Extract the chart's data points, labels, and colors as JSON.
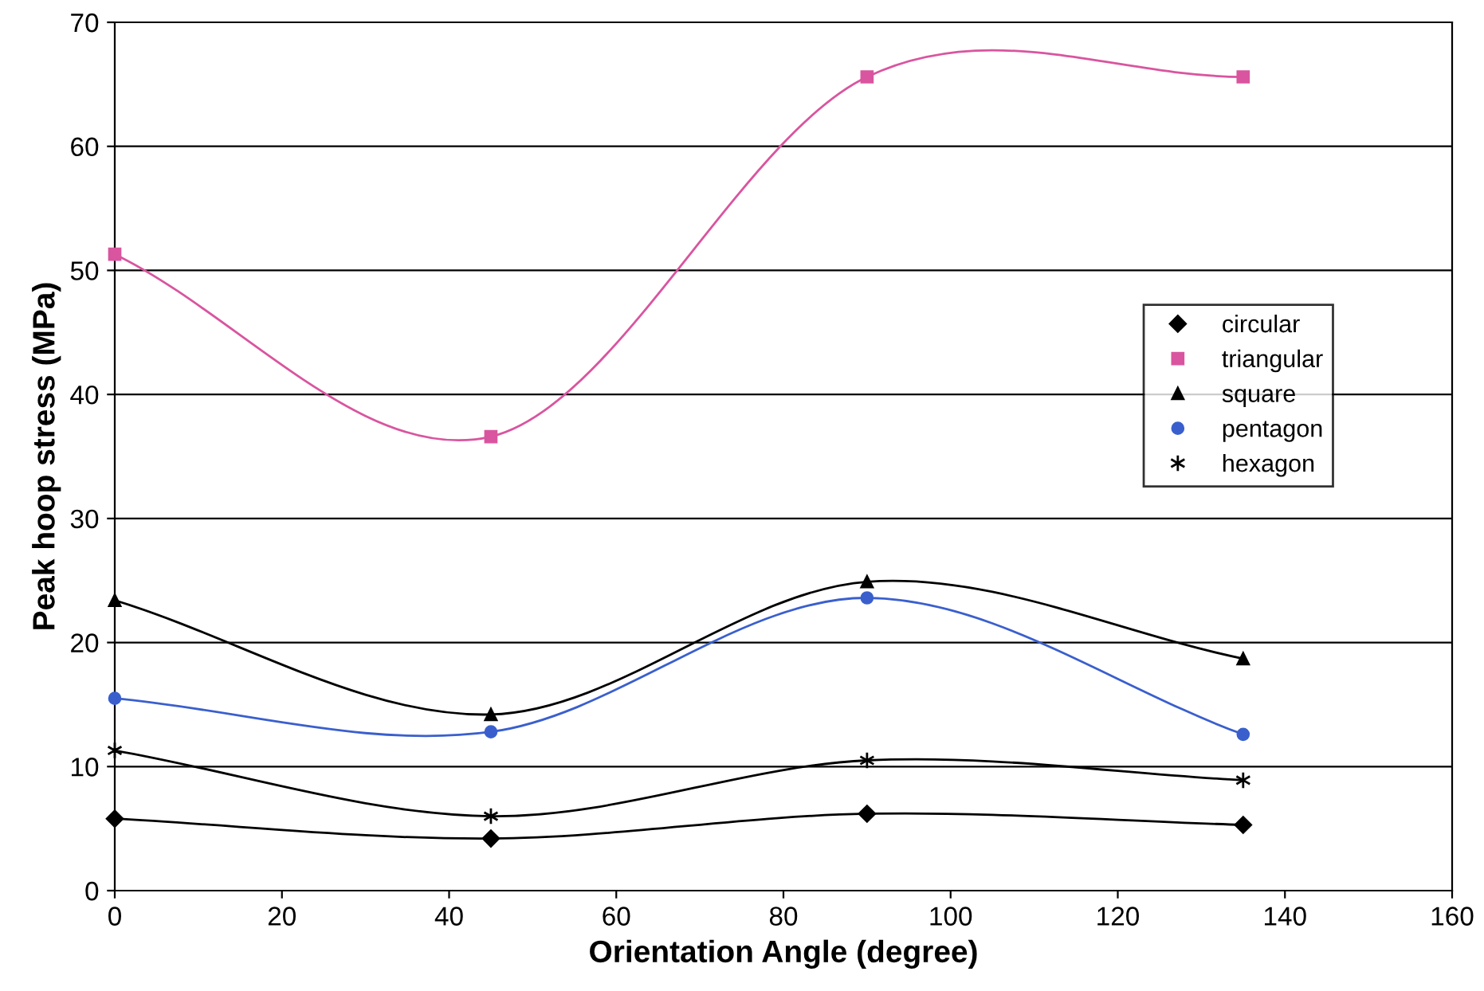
{
  "chart_data": {
    "type": "line",
    "xlabel": "Orientation Angle (degree)",
    "ylabel": "Peak hoop stress (MPa)",
    "x": [
      0,
      45,
      90,
      135
    ],
    "series": [
      {
        "name": "circular",
        "color": "#000000",
        "marker": "diamond",
        "values": [
          5.8,
          4.2,
          6.2,
          5.3
        ]
      },
      {
        "name": "triangular",
        "color": "#d9559f",
        "marker": "square",
        "values": [
          51.3,
          36.6,
          65.6,
          65.6
        ]
      },
      {
        "name": "square",
        "color": "#000000",
        "marker": "triangle",
        "values": [
          23.4,
          14.2,
          24.9,
          18.7
        ]
      },
      {
        "name": "pentagon",
        "color": "#3a5fcd",
        "marker": "circle",
        "values": [
          15.5,
          12.8,
          23.6,
          12.6
        ]
      },
      {
        "name": "hexagon",
        "color": "#000000",
        "marker": "cross",
        "values": [
          11.3,
          6.0,
          10.5,
          8.9
        ]
      }
    ],
    "xlim": [
      0,
      160
    ],
    "xticks": [
      0,
      20,
      40,
      60,
      80,
      100,
      120,
      140,
      160
    ],
    "ylim": [
      0,
      70
    ],
    "yticks": [
      0,
      10,
      20,
      30,
      40,
      50,
      60,
      70
    ],
    "grid": "y",
    "legend": "right",
    "line_style": "solid"
  }
}
